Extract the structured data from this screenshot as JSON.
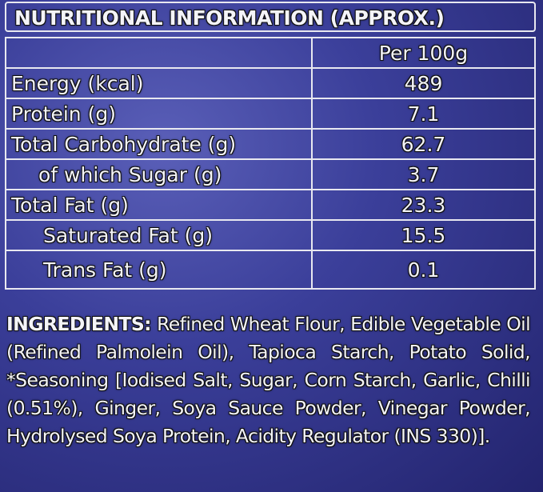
{
  "title": "NUTRITIONAL INFORMATION (APPROX.)",
  "table": {
    "header": "Per 100g",
    "rows": [
      [
        "Energy (kcal)",
        "489"
      ],
      [
        "Protein (g)",
        "7.1"
      ],
      [
        "Total Carbohydrate (g)",
        "62.7"
      ],
      [
        "of which Sugar (g)",
        "3.7"
      ],
      [
        "Total Fat (g)",
        "23.3"
      ],
      [
        "Saturated Fat (g)",
        "15.5"
      ],
      [
        "Trans Fat (g)",
        "0.1"
      ]
    ]
  },
  "ingredients": {
    "label": "INGREDIENTS:",
    "text": "Refined Wheat Flour, Edible Vegetable Oil (Refined Palmolein Oil), Tapioca Starch, Potato Solid, *Seasoning [Iodised Salt, Sugar, Corn Starch, Garlic, Chilli (0.51%), Ginger, Soya Sauce Powder, Vinegar Powder, Hydrolysed Soya Protein, Acidity Regulator (INS 330)]."
  }
}
